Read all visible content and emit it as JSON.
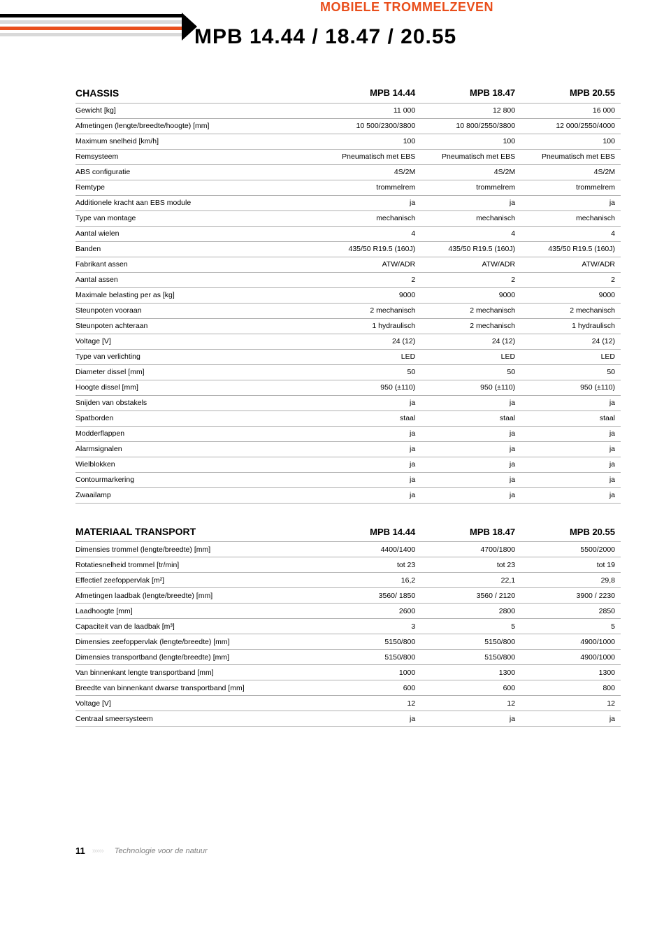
{
  "header": {
    "category_title": "MOBIELE TROMMELZEVEN",
    "product_title": "MPB 14.44 / 18.47 / 20.55"
  },
  "colors": {
    "accent": "#e94e1b",
    "stripe_black": "#000000",
    "stripe_grey": "#d9d9d9",
    "border": "#b0b0b0",
    "text": "#000000",
    "footer_grey": "#808080"
  },
  "tables": [
    {
      "header": [
        "CHASSIS",
        "MPB 14.44",
        "MPB 18.47",
        "MPB 20.55"
      ],
      "rows": [
        [
          "Gewicht [kg]",
          "11 000",
          "12 800",
          "16 000"
        ],
        [
          "Afmetingen (lengte/breedte/hoogte) [mm]",
          "10 500/2300/3800",
          "10 800/2550/3800",
          "12 000/2550/4000"
        ],
        [
          "Maximum snelheid [km/h]",
          "100",
          "100",
          "100"
        ],
        [
          "Remsysteem",
          "Pneumatisch met EBS",
          "Pneumatisch met  EBS",
          "Pneumatisch met  EBS"
        ],
        [
          "ABS configuratie",
          "4S/2M",
          "4S/2M",
          "4S/2M"
        ],
        [
          "Remtype",
          "trommelrem",
          "trommelrem",
          "trommelrem"
        ],
        [
          "Additionele kracht aan EBS module",
          "ja",
          "ja",
          "ja"
        ],
        [
          "Type van montage",
          "mechanisch",
          "mechanisch",
          "mechanisch"
        ],
        [
          "Aantal wielen",
          "4",
          "4",
          "4"
        ],
        [
          "Banden",
          "435/50 R19.5 (160J)",
          "435/50 R19.5 (160J)",
          "435/50 R19.5 (160J)"
        ],
        [
          "Fabrikant assen",
          "ATW/ADR",
          "ATW/ADR",
          "ATW/ADR"
        ],
        [
          "Aantal assen",
          "2",
          "2",
          "2"
        ],
        [
          "Maximale belasting per as [kg]",
          "9000",
          "9000",
          "9000"
        ],
        [
          "Steunpoten vooraan",
          "2 mechanisch",
          "2 mechanisch",
          "2 mechanisch"
        ],
        [
          "Steunpoten achteraan",
          "1 hydraulisch",
          "2 mechanisch",
          "1 hydraulisch"
        ],
        [
          "Voltage [V]",
          "24 (12)",
          "24 (12)",
          "24 (12)"
        ],
        [
          "Type van verlichting",
          "LED",
          "LED",
          "LED"
        ],
        [
          "Diameter dissel [mm]",
          "50",
          "50",
          "50"
        ],
        [
          "Hoogte dissel [mm]",
          "950 (±110)",
          "950 (±110)",
          "950 (±110)"
        ],
        [
          "Snijden van obstakels",
          "ja",
          "ja",
          "ja"
        ],
        [
          "Spatborden",
          "staal",
          "staal",
          "staal"
        ],
        [
          "Modderflappen",
          "ja",
          "ja",
          "ja"
        ],
        [
          "Alarmsignalen",
          "ja",
          "ja",
          "ja"
        ],
        [
          "Wielblokken",
          "ja",
          "ja",
          "ja"
        ],
        [
          "Contourmarkering",
          "ja",
          "ja",
          "ja"
        ],
        [
          "Zwaailamp",
          "ja",
          "ja",
          "ja"
        ]
      ]
    },
    {
      "header": [
        "MATERIAAL TRANSPORT",
        "MPB 14.44",
        "MPB 18.47",
        "MPB 20.55"
      ],
      "rows": [
        [
          "Dimensies trommel (lengte/breedte) [mm]",
          "4400/1400",
          "4700/1800",
          "5500/2000"
        ],
        [
          "Rotatiesnelheid trommel [tr/min]",
          "tot 23",
          "tot 23",
          "tot 19"
        ],
        [
          "Effectief zeefoppervlak [m²]",
          "16,2",
          "22,1",
          "29,8"
        ],
        [
          "Afmetingen laadbak (lengte/breedte) [mm]",
          "3560/ 1850",
          "3560 / 2120",
          "3900 / 2230"
        ],
        [
          "Laadhoogte [mm]",
          "2600",
          "2800",
          "2850"
        ],
        [
          "Capaciteit van de laadbak [m³]",
          "3",
          "5",
          "5"
        ],
        [
          "Dimensies zeefoppervlak (lengte/breedte) [mm]",
          "5150/800",
          "5150/800",
          "4900/1000"
        ],
        [
          "Dimensies transportband (lengte/breedte) [mm]",
          "5150/800",
          "5150/800",
          "4900/1000"
        ],
        [
          "Van binnenkant lengte transportband [mm]",
          "1000",
          "1300",
          "1300"
        ],
        [
          "Breedte van binnenkant dwarse transportband  [mm]",
          "600",
          "600",
          "800"
        ],
        [
          "Voltage [V]",
          "12",
          "12",
          "12"
        ],
        [
          "Centraal smeersysteem",
          "ja",
          "ja",
          "ja"
        ]
      ]
    }
  ],
  "footer": {
    "page_number": "11",
    "tagline": "Technologie voor de natuur"
  }
}
